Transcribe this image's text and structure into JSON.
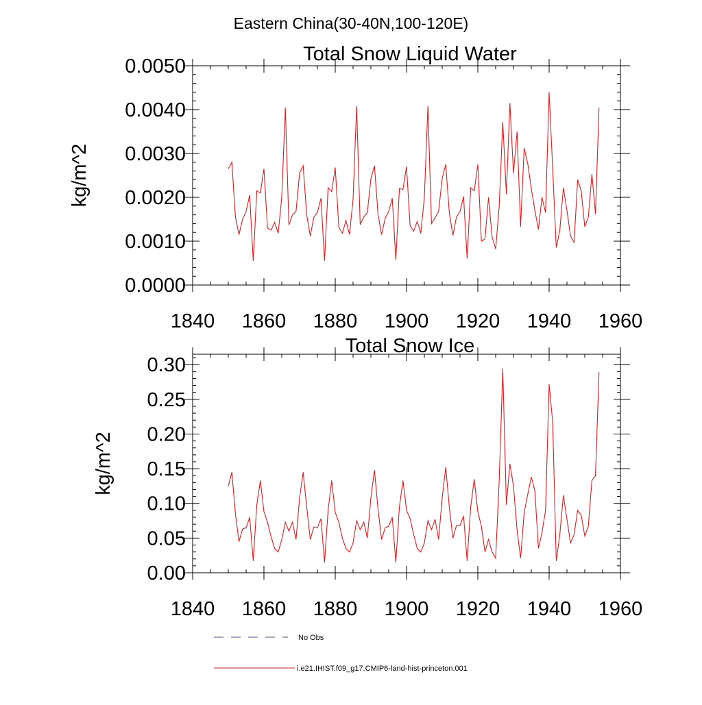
{
  "page_title": "Eastern China(30-40N,100-120E)",
  "colors": {
    "series": "#e41a1c",
    "obs": "#4a4aa0",
    "axis": "#000000"
  },
  "legend": {
    "obs_label": "No Obs",
    "model_label": "i.e21.IHIST.f09_g17.CMIP6-land-hist-princeton.001"
  },
  "chart_data": [
    {
      "type": "line",
      "title": "Total Snow Liquid Water",
      "ylabel": "kg/m^2",
      "xlabel": "",
      "xlim": [
        1840,
        1960
      ],
      "ylim": [
        0,
        0.005
      ],
      "xticks": [
        1840,
        1860,
        1880,
        1900,
        1920,
        1940,
        1960
      ],
      "xtick_labels": [
        "1840",
        "1860",
        "1880",
        "1900",
        "1920",
        "1940",
        "1960"
      ],
      "yticks": [
        0,
        0.001,
        0.002,
        0.003,
        0.004,
        0.005
      ],
      "ytick_labels": [
        "0.0000",
        "0.0010",
        "0.0020",
        "0.0030",
        "0.0040",
        "0.0050"
      ],
      "grid": false,
      "series": [
        {
          "x": [
            1850,
            1851,
            1852,
            1853,
            1854,
            1855,
            1856,
            1857,
            1858,
            1859,
            1860,
            1861,
            1862,
            1863,
            1864,
            1865,
            1866,
            1867,
            1868,
            1869,
            1870,
            1871,
            1872,
            1873,
            1874,
            1875,
            1876,
            1877,
            1878,
            1879,
            1880,
            1881,
            1882,
            1883,
            1884,
            1885,
            1886,
            1887,
            1888,
            1889,
            1890,
            1891,
            1892,
            1893,
            1894,
            1895,
            1896,
            1897,
            1898,
            1899,
            1900,
            1901,
            1902,
            1903,
            1904,
            1905,
            1906,
            1907,
            1908,
            1909,
            1910,
            1911,
            1912,
            1913,
            1914,
            1915,
            1916,
            1917,
            1918,
            1919,
            1920,
            1921,
            1922,
            1923,
            1924,
            1925,
            1926,
            1927,
            1928,
            1929,
            1930,
            1931,
            1932,
            1933,
            1934,
            1935,
            1936,
            1937,
            1938,
            1939,
            1940,
            1941,
            1942,
            1943,
            1944,
            1945,
            1946,
            1947,
            1948,
            1949,
            1950,
            1951,
            1952,
            1953,
            1954
          ],
          "y": [
            0.00265,
            0.0028,
            0.00155,
            0.00115,
            0.0015,
            0.00168,
            0.00205,
            0.00055,
            0.00215,
            0.0021,
            0.00265,
            0.0013,
            0.00125,
            0.00143,
            0.00118,
            0.002,
            0.00405,
            0.00137,
            0.0016,
            0.00168,
            0.00255,
            0.00272,
            0.0016,
            0.00112,
            0.00155,
            0.00165,
            0.00198,
            0.00055,
            0.00222,
            0.00213,
            0.00268,
            0.00132,
            0.00118,
            0.00147,
            0.00115,
            0.00195,
            0.00408,
            0.00138,
            0.00155,
            0.00165,
            0.00242,
            0.00272,
            0.00162,
            0.00115,
            0.00152,
            0.00168,
            0.00198,
            0.00057,
            0.0022,
            0.00218,
            0.0027,
            0.00135,
            0.00123,
            0.00145,
            0.00118,
            0.002,
            0.00408,
            0.0014,
            0.00153,
            0.00168,
            0.00243,
            0.00275,
            0.00165,
            0.00113,
            0.00155,
            0.00168,
            0.00202,
            0.0006,
            0.00222,
            0.00215,
            0.00275,
            0.001,
            0.00105,
            0.002,
            0.0011,
            0.00082,
            0.0018,
            0.00372,
            0.00207,
            0.00415,
            0.00255,
            0.0035,
            0.00133,
            0.00312,
            0.00277,
            0.0022,
            0.0017,
            0.00127,
            0.002,
            0.00165,
            0.0044,
            0.00265,
            0.00085,
            0.00125,
            0.00222,
            0.0017,
            0.00112,
            0.00097,
            0.0024,
            0.00215,
            0.00133,
            0.00155,
            0.00253,
            0.00162,
            0.00405
          ]
        }
      ]
    },
    {
      "type": "line",
      "title": "Total Snow Ice",
      "ylabel": "kg/m^2",
      "xlabel": "",
      "xlim": [
        1840,
        1960
      ],
      "ylim": [
        0,
        0.315
      ],
      "xticks": [
        1840,
        1860,
        1880,
        1900,
        1920,
        1940,
        1960
      ],
      "xtick_labels": [
        "1840",
        "1860",
        "1880",
        "1900",
        "1920",
        "1940",
        "1960"
      ],
      "yticks": [
        0,
        0.05,
        0.1,
        0.15,
        0.2,
        0.25,
        0.3
      ],
      "ytick_labels": [
        "0.00",
        "0.05",
        "0.10",
        "0.15",
        "0.20",
        "0.25",
        "0.30"
      ],
      "grid": false,
      "series": [
        {
          "x": [
            1850,
            1851,
            1852,
            1853,
            1854,
            1855,
            1856,
            1857,
            1858,
            1859,
            1860,
            1861,
            1862,
            1863,
            1864,
            1865,
            1866,
            1867,
            1868,
            1869,
            1870,
            1871,
            1872,
            1873,
            1874,
            1875,
            1876,
            1877,
            1878,
            1879,
            1880,
            1881,
            1882,
            1883,
            1884,
            1885,
            1886,
            1887,
            1888,
            1889,
            1890,
            1891,
            1892,
            1893,
            1894,
            1895,
            1896,
            1897,
            1898,
            1899,
            1900,
            1901,
            1902,
            1903,
            1904,
            1905,
            1906,
            1907,
            1908,
            1909,
            1910,
            1911,
            1912,
            1913,
            1914,
            1915,
            1916,
            1917,
            1918,
            1919,
            1920,
            1921,
            1922,
            1923,
            1924,
            1925,
            1926,
            1927,
            1928,
            1929,
            1930,
            1931,
            1932,
            1933,
            1934,
            1935,
            1936,
            1937,
            1938,
            1939,
            1940,
            1941,
            1942,
            1943,
            1944,
            1945,
            1946,
            1947,
            1948,
            1949,
            1950,
            1951,
            1952,
            1953,
            1954
          ],
          "y": [
            0.125,
            0.145,
            0.085,
            0.045,
            0.063,
            0.065,
            0.08,
            0.017,
            0.098,
            0.133,
            0.088,
            0.073,
            0.052,
            0.035,
            0.03,
            0.048,
            0.073,
            0.06,
            0.073,
            0.048,
            0.108,
            0.145,
            0.095,
            0.048,
            0.066,
            0.065,
            0.078,
            0.015,
            0.09,
            0.133,
            0.087,
            0.073,
            0.05,
            0.035,
            0.03,
            0.043,
            0.075,
            0.062,
            0.073,
            0.05,
            0.108,
            0.148,
            0.092,
            0.048,
            0.065,
            0.067,
            0.08,
            0.015,
            0.095,
            0.133,
            0.09,
            0.078,
            0.055,
            0.035,
            0.03,
            0.043,
            0.075,
            0.062,
            0.077,
            0.048,
            0.108,
            0.152,
            0.095,
            0.05,
            0.068,
            0.068,
            0.082,
            0.017,
            0.095,
            0.135,
            0.088,
            0.067,
            0.03,
            0.048,
            0.03,
            0.021,
            0.133,
            0.294,
            0.098,
            0.157,
            0.125,
            0.062,
            0.021,
            0.087,
            0.113,
            0.138,
            0.118,
            0.035,
            0.058,
            0.09,
            0.272,
            0.217,
            0.017,
            0.055,
            0.112,
            0.077,
            0.043,
            0.055,
            0.09,
            0.083,
            0.053,
            0.067,
            0.133,
            0.14,
            0.289
          ]
        }
      ]
    }
  ]
}
